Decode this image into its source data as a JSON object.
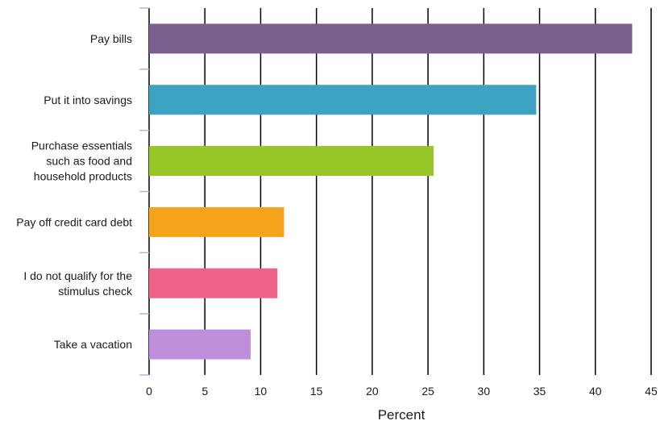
{
  "chart_data": {
    "type": "bar",
    "orientation": "horizontal",
    "categories": [
      [
        "Pay bills"
      ],
      [
        "Put it into savings"
      ],
      [
        "Purchase essentials",
        "such as food and",
        "household products"
      ],
      [
        "Pay off credit card debt"
      ],
      [
        "I do not qualify for the",
        "stimulus check"
      ],
      [
        "Take a vacation"
      ]
    ],
    "values": [
      43.3,
      34.7,
      25.5,
      12.1,
      11.5,
      9.1
    ],
    "colors": [
      "#7b5f8f",
      "#3ea3c2",
      "#95c526",
      "#f5a31d",
      "#f0628a",
      "#c08fdc"
    ],
    "xlabel": "Percent",
    "xlim": [
      0,
      45
    ],
    "xticks": [
      0,
      5,
      10,
      15,
      20,
      25,
      30,
      35,
      40,
      45
    ],
    "grid": true,
    "legend": "none"
  }
}
